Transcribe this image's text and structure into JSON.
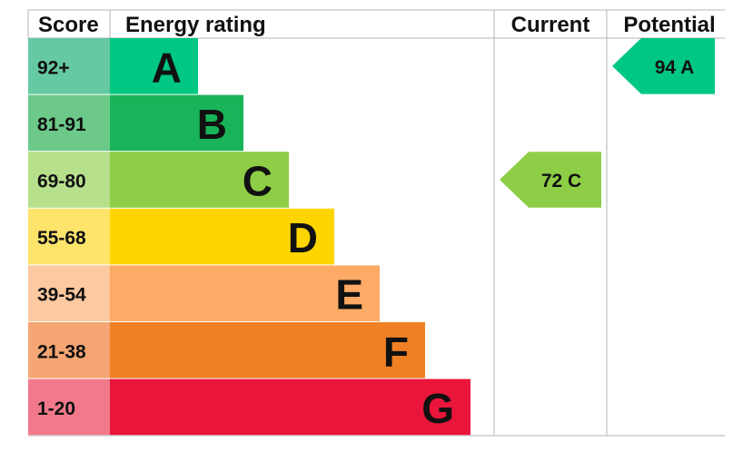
{
  "headers": {
    "score": "Score",
    "rating": "Energy rating",
    "current": "Current",
    "potential": "Potential"
  },
  "chart_data": {
    "type": "bar",
    "categories": [
      "A",
      "B",
      "C",
      "D",
      "E",
      "F",
      "G"
    ],
    "score_ranges": [
      "92+",
      "81-91",
      "69-80",
      "55-68",
      "39-54",
      "21-38",
      "1-20"
    ],
    "band_colors": [
      "#00c781",
      "#19b459",
      "#8dce46",
      "#ffd500",
      "#fcaa65",
      "#ef8023",
      "#e9153b"
    ],
    "score_cell_colors": [
      "#65c9a3",
      "#6cc98a",
      "#b7e08c",
      "#ffe46b",
      "#fdc9a0",
      "#f5a673",
      "#f2798c"
    ],
    "current": {
      "score": 72,
      "band": "C",
      "label": "72  C",
      "color": "#8dce46"
    },
    "potential": {
      "score": 94,
      "band": "A",
      "label": "94  A",
      "color": "#00c781"
    }
  }
}
